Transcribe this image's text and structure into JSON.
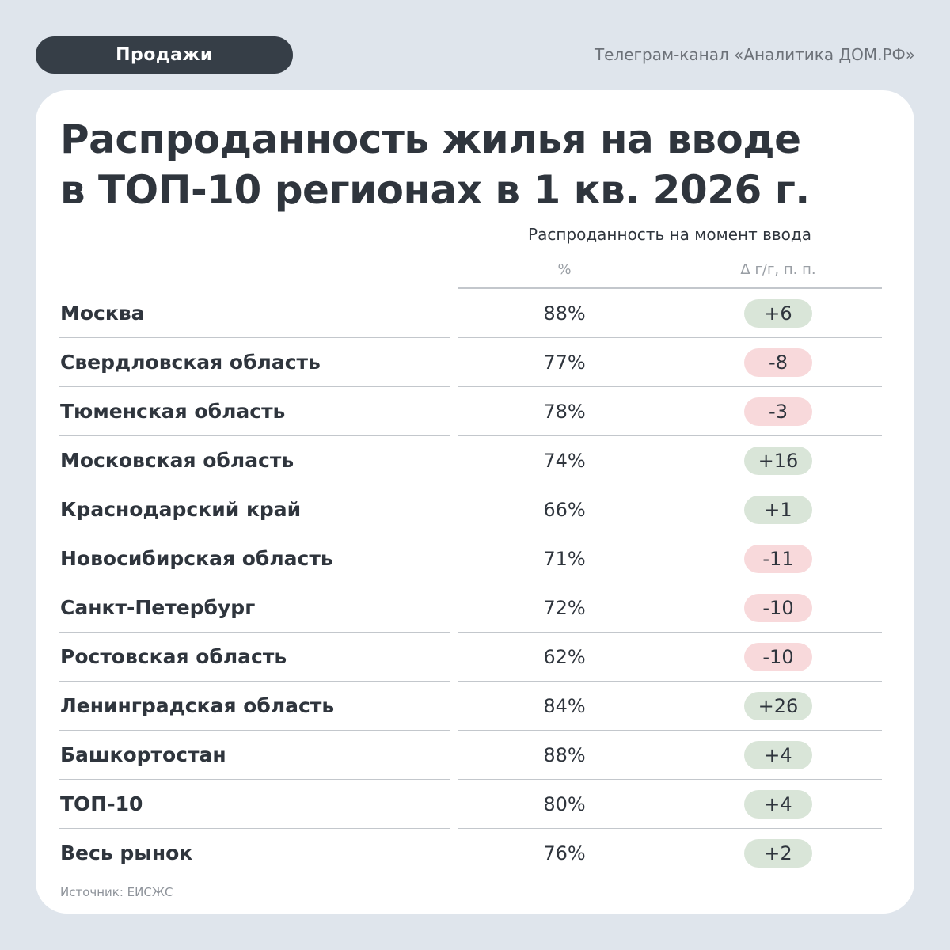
{
  "header": {
    "tag_label": "Продажи",
    "channel": "Телеграм-канал «Аналитика ДОМ.РФ»"
  },
  "chart_data": {
    "type": "table",
    "title_line1": "Распроданность жилья на вводе",
    "title_line2": "в ТОП-10 регионах в 1 кв. 2026 г.",
    "column_group": "Распроданность на момент ввода",
    "columns": [
      "%",
      "Δ г/г, п. п."
    ],
    "positive_color": "#d9e5d8",
    "negative_color": "#f8d9db",
    "rows": [
      {
        "region": "Москва",
        "pct": "88%",
        "delta": "+6",
        "delta_value": 6
      },
      {
        "region": "Свердловская область",
        "pct": "77%",
        "delta": "-8",
        "delta_value": -8
      },
      {
        "region": "Тюменская область",
        "pct": "78%",
        "delta": "-3",
        "delta_value": -3
      },
      {
        "region": "Московская область",
        "pct": "74%",
        "delta": "+16",
        "delta_value": 16
      },
      {
        "region": "Краснодарский край",
        "pct": "66%",
        "delta": "+1",
        "delta_value": 1
      },
      {
        "region": "Новосибирская область",
        "pct": "71%",
        "delta": "-11",
        "delta_value": -11
      },
      {
        "region": "Санкт-Петербург",
        "pct": "72%",
        "delta": "-10",
        "delta_value": -10
      },
      {
        "region": "Ростовская область",
        "pct": "62%",
        "delta": "-10",
        "delta_value": -10
      },
      {
        "region": "Ленинградская область",
        "pct": "84%",
        "delta": "+26",
        "delta_value": 26
      },
      {
        "region": "Башкортостан",
        "pct": "88%",
        "delta": "+4",
        "delta_value": 4
      },
      {
        "region": "ТОП-10",
        "pct": "80%",
        "delta": "+4",
        "delta_value": 4
      },
      {
        "region": "Весь рынок",
        "pct": "76%",
        "delta": "+2",
        "delta_value": 2
      }
    ],
    "source": "Источник: ЕИСЖС"
  }
}
